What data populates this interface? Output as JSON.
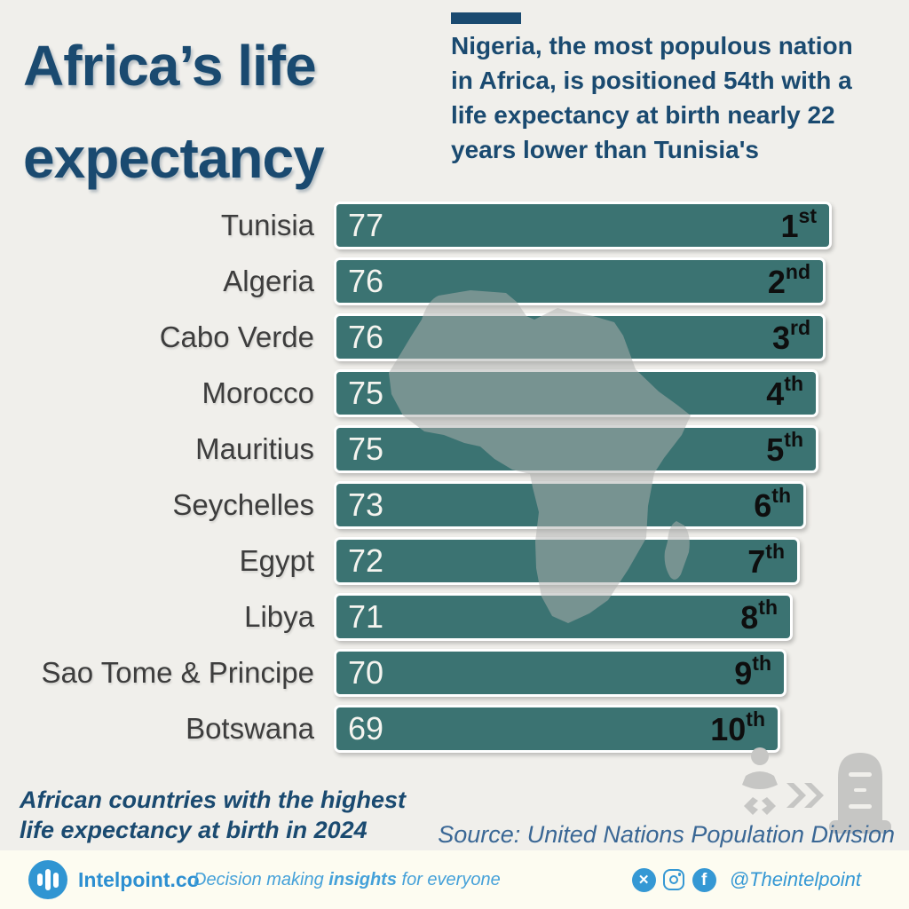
{
  "page": {
    "background": "#f0efeb",
    "navy": "#1a4a70",
    "footer_blue": "#3598d4"
  },
  "title": {
    "line1": "Africa’s life",
    "line2": "expectancy"
  },
  "headline": {
    "text": "Nigeria, the most populous nation in Africa, is positioned 54th with a life expectancy at birth nearly 22 years lower than Tunisia's"
  },
  "chart_data": {
    "type": "bar",
    "orientation": "horizontal",
    "title": "African countries with the highest life expectancy at birth in 2024",
    "categories": [
      "Tunisia",
      "Algeria",
      "Cabo Verde",
      "Morocco",
      "Mauritius",
      "Seychelles",
      "Egypt",
      "Libya",
      "Sao Tome & Principe",
      "Botswana"
    ],
    "values": [
      77,
      76,
      76,
      75,
      75,
      73,
      72,
      71,
      70,
      69
    ],
    "rank_base": [
      "1",
      "2",
      "3",
      "4",
      "5",
      "6",
      "7",
      "8",
      "9",
      "10"
    ],
    "rank_suffix": [
      "st",
      "nd",
      "rd",
      "th",
      "th",
      "th",
      "th",
      "th",
      "th",
      "th"
    ],
    "value_axis_max": 77,
    "bar_color": "#3b7372",
    "value_label_color": "#f5f4ef",
    "rank_label_color": "#0e0e0e",
    "grid": false,
    "legend": false,
    "background_motif": "africa-map-silhouette"
  },
  "caption": {
    "line1": "African countries with the highest",
    "line2": "life expectancy at birth in 2024"
  },
  "source": {
    "text": "Source: United Nations Population Division"
  },
  "footer": {
    "brand": "Intelpoint.co",
    "tagline_pre": "Decision making ",
    "tagline_bold": "insights",
    "tagline_post": " for everyone",
    "handle": "@Theintelpoint",
    "social_icons": [
      "x-icon",
      "instagram-icon",
      "facebook-icon"
    ],
    "x_glyph": "✕",
    "f_glyph": "f"
  }
}
